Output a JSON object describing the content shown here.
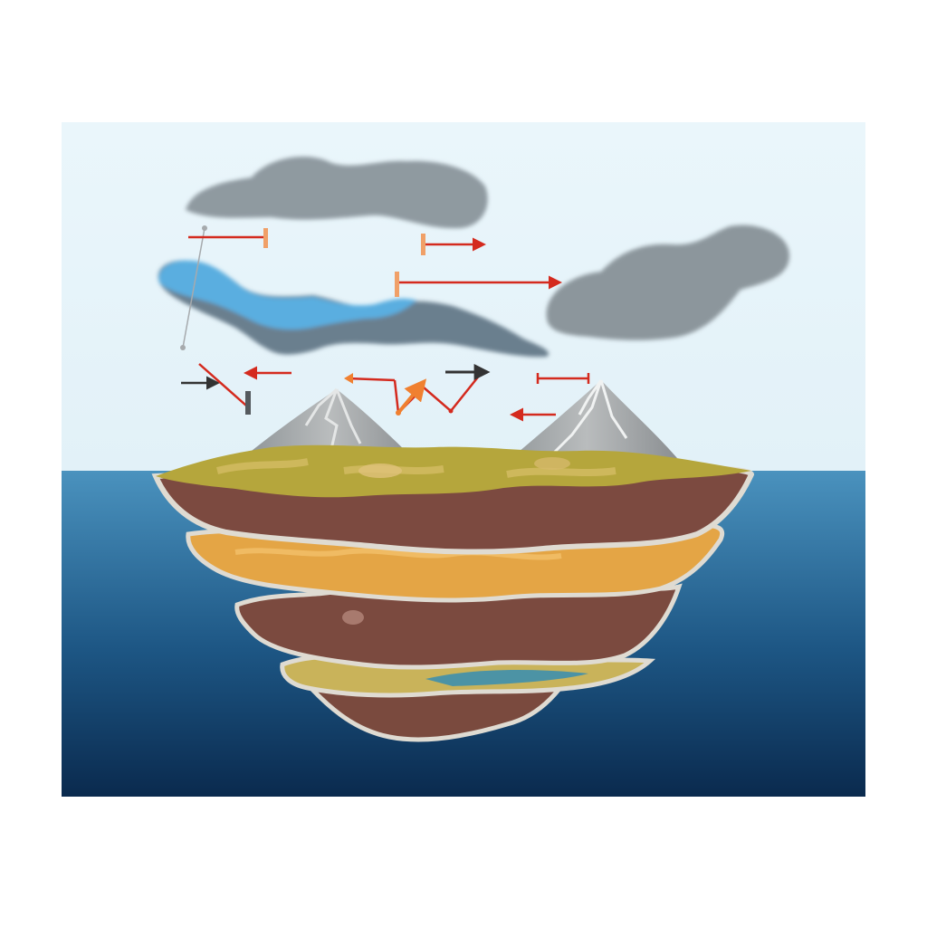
{
  "illustration": {
    "colors": {
      "background": "#ffffff",
      "sky": "#e8f5fb",
      "sea_top": "#4a92be",
      "sea_bottom": "#0a2a4e",
      "cloud_gray": "#8e999f",
      "cloud_blue": "#5aaee0",
      "arrow_red": "#d42a1e",
      "arrow_orange": "#f0a068",
      "arrow_black": "#333333",
      "mountain": "#a7aaab",
      "grass": "#b5a63c",
      "rock_brown": "#7a4a3e",
      "sand_orange": "#e4a545",
      "rim": "#dfdbd2"
    },
    "elements": {
      "clouds": [
        "gray-cloud",
        "blue-cloud",
        "gray-cloud"
      ],
      "mountains": [
        "snow-capped-peak",
        "snow-capped-peak"
      ],
      "strata": [
        "topsoil-grassland",
        "rock-layer",
        "sediment-layer",
        "rock-layer",
        "grass-water-layer",
        "rock-layer"
      ],
      "arrows": [
        "red-arrow",
        "orange-arrow",
        "black-arrow"
      ],
      "labels": []
    }
  }
}
